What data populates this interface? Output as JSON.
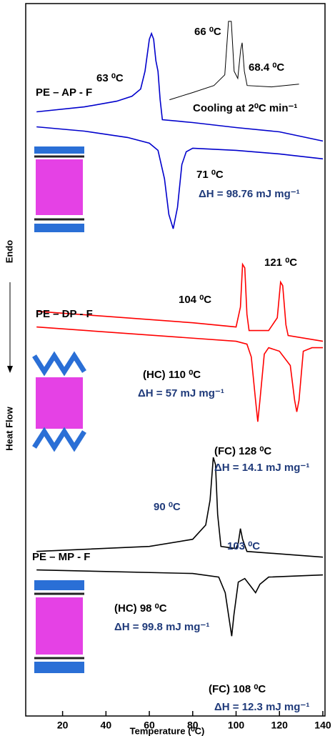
{
  "chart_data": {
    "type": "line",
    "x_label": "Temperature (⁰C)",
    "y_label": "Heat Flow",
    "y_direction_label": "Endo",
    "xlim": [
      3,
      141
    ],
    "xticks": [
      20,
      40,
      60,
      80,
      100,
      120,
      140
    ],
    "ylim": [
      0,
      100
    ],
    "sample_labels": [
      "PE – AP - F",
      "PE – DP - F",
      "PE – MP - F"
    ],
    "series": [
      {
        "color": "#0000cc",
        "x": [
          8,
          30,
          45,
          52,
          56,
          58,
          60,
          61,
          62,
          63,
          64,
          65,
          66,
          80,
          100,
          120,
          140
        ],
        "values": [
          84.8,
          85.5,
          86.3,
          87.0,
          88.0,
          90.5,
          95.0,
          95.8,
          95.0,
          92.0,
          90.5,
          86.5,
          83.7,
          83.3,
          82.6,
          82.0,
          80.7
        ]
      },
      {
        "color": "#0000cc",
        "x": [
          8,
          30,
          50,
          60,
          64,
          67,
          69,
          71,
          73,
          75,
          77,
          80,
          100,
          120,
          140
        ],
        "values": [
          82.7,
          82.1,
          81.2,
          80.4,
          79.4,
          75.4,
          70.4,
          68.4,
          71.4,
          77.4,
          79.2,
          79.7,
          79.4,
          78.9,
          78.2
        ]
      },
      {
        "color": "#000000",
        "x": [
          69.3,
          79.9,
          89.8,
          94.8,
          96.5,
          97.8,
          99.1,
          100.8,
          102.1,
          102.8,
          103.8,
          105.1,
          116.4,
          129.0
        ],
        "values": [
          86.5,
          87.5,
          88.5,
          90.0,
          97.5,
          97.5,
          90.5,
          89.5,
          93.5,
          94.5,
          90.5,
          88.5,
          88.3,
          88.7
        ]
      },
      {
        "color": "#ff0000",
        "x": [
          8,
          40,
          80,
          100,
          102,
          103,
          104,
          105,
          106,
          115,
          119,
          120.5,
          121.5,
          123,
          124,
          140
        ],
        "values": [
          56.8,
          56.1,
          55.2,
          54.6,
          57.4,
          63.4,
          62.9,
          56.4,
          54.1,
          54.1,
          55.9,
          60.9,
          60.4,
          54.9,
          53.4,
          52.6
        ]
      },
      {
        "color": "#ff0000",
        "x": [
          8,
          100,
          105,
          107,
          109,
          110,
          111,
          113,
          115,
          120,
          125,
          127,
          128,
          129,
          131,
          135,
          140
        ],
        "values": [
          54.6,
          52.6,
          52.2,
          50.4,
          44.3,
          41.3,
          44.3,
          50.8,
          51.7,
          51.2,
          49.2,
          44.3,
          42.7,
          44.3,
          51.2,
          51.7,
          51.7
        ]
      },
      {
        "color": "#000000",
        "x": [
          8,
          60,
          80,
          86,
          88,
          89.5,
          90.5,
          91.5,
          93,
          100,
          101,
          102,
          103,
          105,
          140
        ],
        "values": [
          23.1,
          23.8,
          24.8,
          26.8,
          30.3,
          36.3,
          35.3,
          28.3,
          23.8,
          23.5,
          24.3,
          26.3,
          24.8,
          23.1,
          22.3
        ]
      },
      {
        "color": "#000000",
        "x": [
          8,
          80,
          92,
          95,
          97,
          98,
          99,
          101,
          104,
          107,
          109,
          111,
          115,
          140
        ],
        "values": [
          20.5,
          20.0,
          19.5,
          17.3,
          13.2,
          11.2,
          14.2,
          18.8,
          19.3,
          18.1,
          17.3,
          18.5,
          19.5,
          19.8
        ]
      }
    ],
    "annotations": [
      {
        "text": "63 ⁰C",
        "color": "#000000"
      },
      {
        "text": "66 ⁰C",
        "color": "#000000"
      },
      {
        "text": "68.4 ⁰C",
        "color": "#000000"
      },
      {
        "text": "Cooling at 2⁰C min⁻¹",
        "color": "#000000"
      },
      {
        "text": "71 ⁰C",
        "color": "#000000"
      },
      {
        "text": "ΔH = 98.76 mJ mg⁻¹",
        "color": "#1f3a7a"
      },
      {
        "text": "104 ⁰C",
        "color": "#000000"
      },
      {
        "text": "121 ⁰C",
        "color": "#000000"
      },
      {
        "text": "(HC) 110 ⁰C",
        "color": "#000000"
      },
      {
        "text": "ΔH = 57 mJ mg⁻¹",
        "color": "#1f3a7a"
      },
      {
        "text": "(FC) 128 ⁰C",
        "color": "#000000"
      },
      {
        "text": "ΔH = 14.1 mJ mg⁻¹",
        "color": "#1f3a7a"
      },
      {
        "text": "90 ⁰C",
        "color": "#1f3a7a"
      },
      {
        "text": "103 ⁰C",
        "color": "#1f3a7a"
      },
      {
        "text": "(HC) 98 ⁰C",
        "color": "#000000"
      },
      {
        "text": "ΔH = 99.8 mJ mg⁻¹",
        "color": "#1f3a7a"
      },
      {
        "text": "(FC) 108 ⁰C",
        "color": "#000000"
      },
      {
        "text": "ΔH = 12.3 mJ mg⁻¹",
        "color": "#1f3a7a"
      }
    ]
  }
}
